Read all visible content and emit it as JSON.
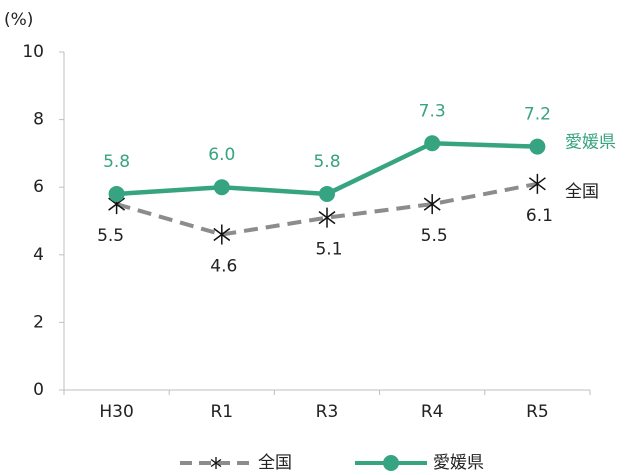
{
  "chart_data": {
    "type": "line",
    "y_unit": "(%)",
    "categories": [
      "H30",
      "R1",
      "R3",
      "R4",
      "R5"
    ],
    "series": [
      {
        "name": "全国",
        "color": "#8c8c8c",
        "marker": "asterisk",
        "dash": true,
        "label_position": "below",
        "values": [
          5.5,
          4.6,
          5.1,
          5.5,
          6.1
        ],
        "value_labels": [
          "5.5",
          "4.6",
          "5.1",
          "5.5",
          "6.1"
        ]
      },
      {
        "name": "愛媛県",
        "color": "#36a381",
        "marker": "circle",
        "dash": false,
        "label_position": "above",
        "values": [
          5.8,
          6.0,
          5.8,
          7.3,
          7.2
        ],
        "value_labels": [
          "5.8",
          "6.0",
          "5.8",
          "7.3",
          "7.2"
        ]
      }
    ],
    "ylim": [
      0,
      10
    ],
    "yticks": [
      0,
      2,
      4,
      6,
      8,
      10
    ],
    "grid": false,
    "legend": "bottom"
  }
}
